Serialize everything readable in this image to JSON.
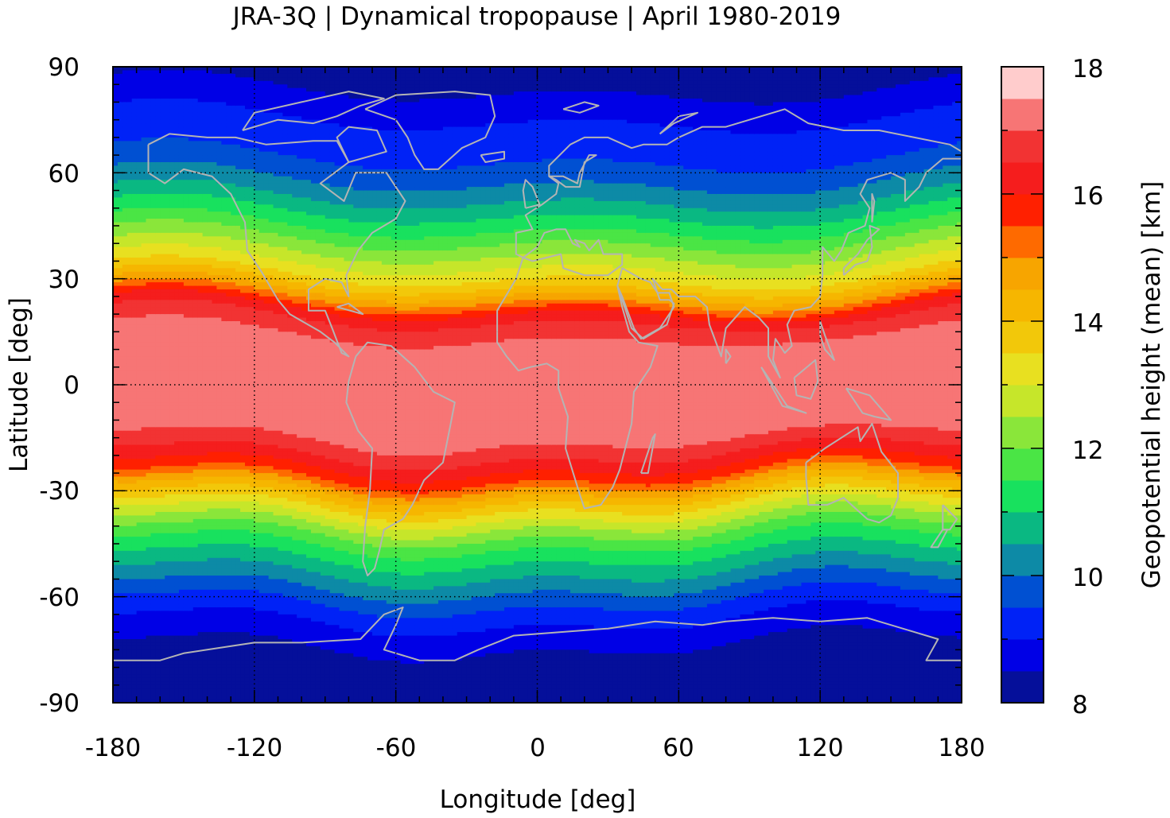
{
  "title": "JRA-3Q | Dynamical tropopause | April 1980-2019",
  "map": {
    "xlabel": "Longitude [deg]",
    "ylabel": "Latitude [deg]",
    "xlim": [
      -180,
      180
    ],
    "ylim": [
      -90,
      90
    ],
    "xticks": [
      "-180",
      "-120",
      "-60",
      "0",
      "60",
      "120",
      "180"
    ],
    "yticks": [
      "90",
      "60",
      "30",
      "0",
      "-30",
      "-60",
      "-90"
    ],
    "grid": "dotted at 60 deg longitude and 30 deg latitude",
    "coastline_color": "#b4b4b4"
  },
  "colorbar": {
    "label": "Geopotential height (mean) [km]",
    "range": [
      8,
      18
    ],
    "step": 0.5,
    "ticks": [
      "18",
      "16",
      "14",
      "12",
      "10",
      "8"
    ],
    "colors": [
      "#0c0e2e",
      "#050f9a",
      "#0000e6",
      "#0022f6",
      "#0050d2",
      "#0d8aa6",
      "#0ab882",
      "#18e15e",
      "#4ae545",
      "#8ae63a",
      "#c6e62a",
      "#e8e020",
      "#f2c80a",
      "#f6b600",
      "#f7a500",
      "#fe6a00",
      "#ff2000",
      "#f51d1d",
      "#f23333",
      "#f77575",
      "#ffcccc"
    ]
  },
  "chart_data": {
    "type": "heatmap",
    "title": "JRA-3Q | Dynamical tropopause | April 1980-2019",
    "xlabel": "Longitude [deg]",
    "ylabel": "Latitude [deg]",
    "xlim": [
      -180,
      180
    ],
    "ylim": [
      -90,
      90
    ],
    "colorbar_label": "Geopotential height (mean) [km]",
    "colorbar_range": [
      8,
      18
    ],
    "zonal_profile": {
      "lat": [
        90,
        85,
        80,
        75,
        70,
        65,
        60,
        55,
        50,
        45,
        40,
        35,
        30,
        25,
        20,
        15,
        10,
        5,
        0,
        -5,
        -10,
        -15,
        -20,
        -25,
        -30,
        -35,
        -40,
        -45,
        -50,
        -55,
        -60,
        -65,
        -70,
        -75,
        -80,
        -85,
        -90
      ],
      "height_km": [
        8.2,
        8.4,
        8.7,
        9.0,
        9.2,
        9.4,
        9.8,
        10.2,
        10.8,
        11.4,
        12.1,
        12.8,
        13.6,
        14.8,
        16.3,
        16.9,
        17.3,
        17.4,
        17.4,
        17.4,
        17.3,
        17.0,
        16.4,
        15.6,
        14.3,
        13.2,
        12.2,
        11.4,
        10.8,
        10.2,
        9.6,
        9.1,
        8.7,
        8.4,
        8.2,
        8.1,
        8.1
      ]
    }
  }
}
